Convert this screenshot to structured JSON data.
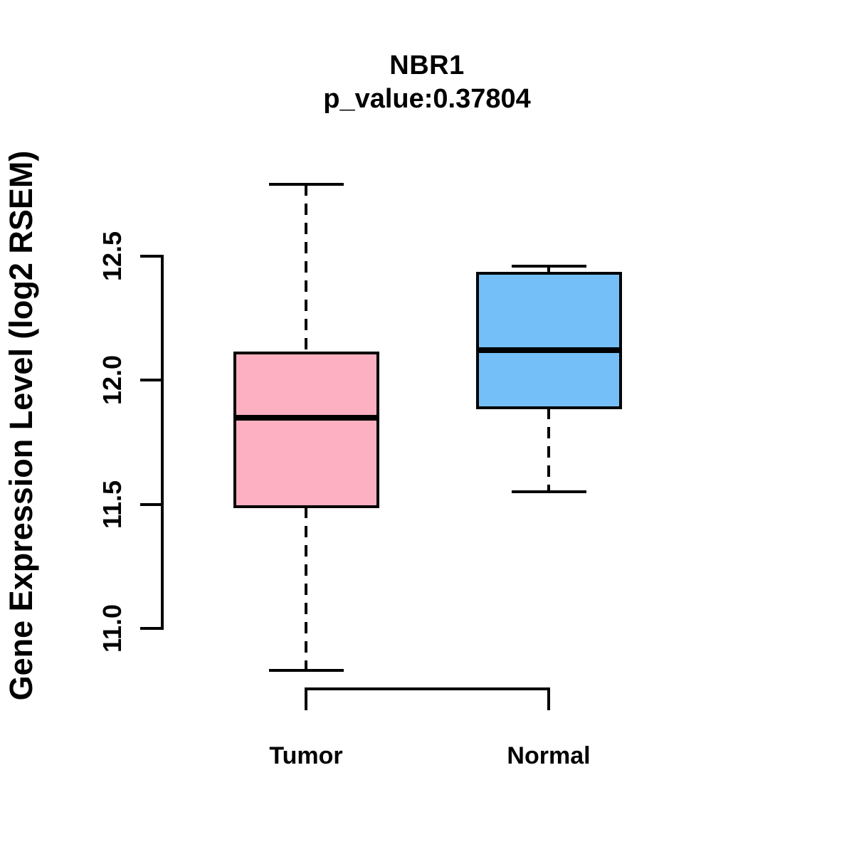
{
  "figure": {
    "title": "NBR1",
    "subtitle": "p_value:0.37804",
    "ylabel": "Gene Expression Level (log2 RSEM)"
  },
  "chart_data": {
    "type": "boxplot",
    "title": "NBR1",
    "subtitle": "p_value:0.37804",
    "xlabel": "",
    "ylabel": "Gene Expression Level (log2 RSEM)",
    "categories": [
      "Tumor",
      "Normal"
    ],
    "y_tick_labels": [
      "12.5",
      "12.0",
      "11.5",
      "11.0"
    ],
    "ylim": [
      10.7,
      12.9
    ],
    "grid": false,
    "legend": "none",
    "series": [
      {
        "name": "Tumor",
        "whisker_low": 10.83,
        "q1": 11.49,
        "median": 11.85,
        "q3": 12.11,
        "whisker_high": 12.79,
        "fill_color": "#FCB0C1"
      },
      {
        "name": "Normal",
        "whisker_low": 11.55,
        "q1": 11.89,
        "median": 12.12,
        "q3": 12.43,
        "whisker_high": 12.46,
        "fill_color": "#74BFF7"
      }
    ],
    "colors": {
      "line": "#000000",
      "text": "#000000",
      "background": "#FFFFFF"
    }
  }
}
